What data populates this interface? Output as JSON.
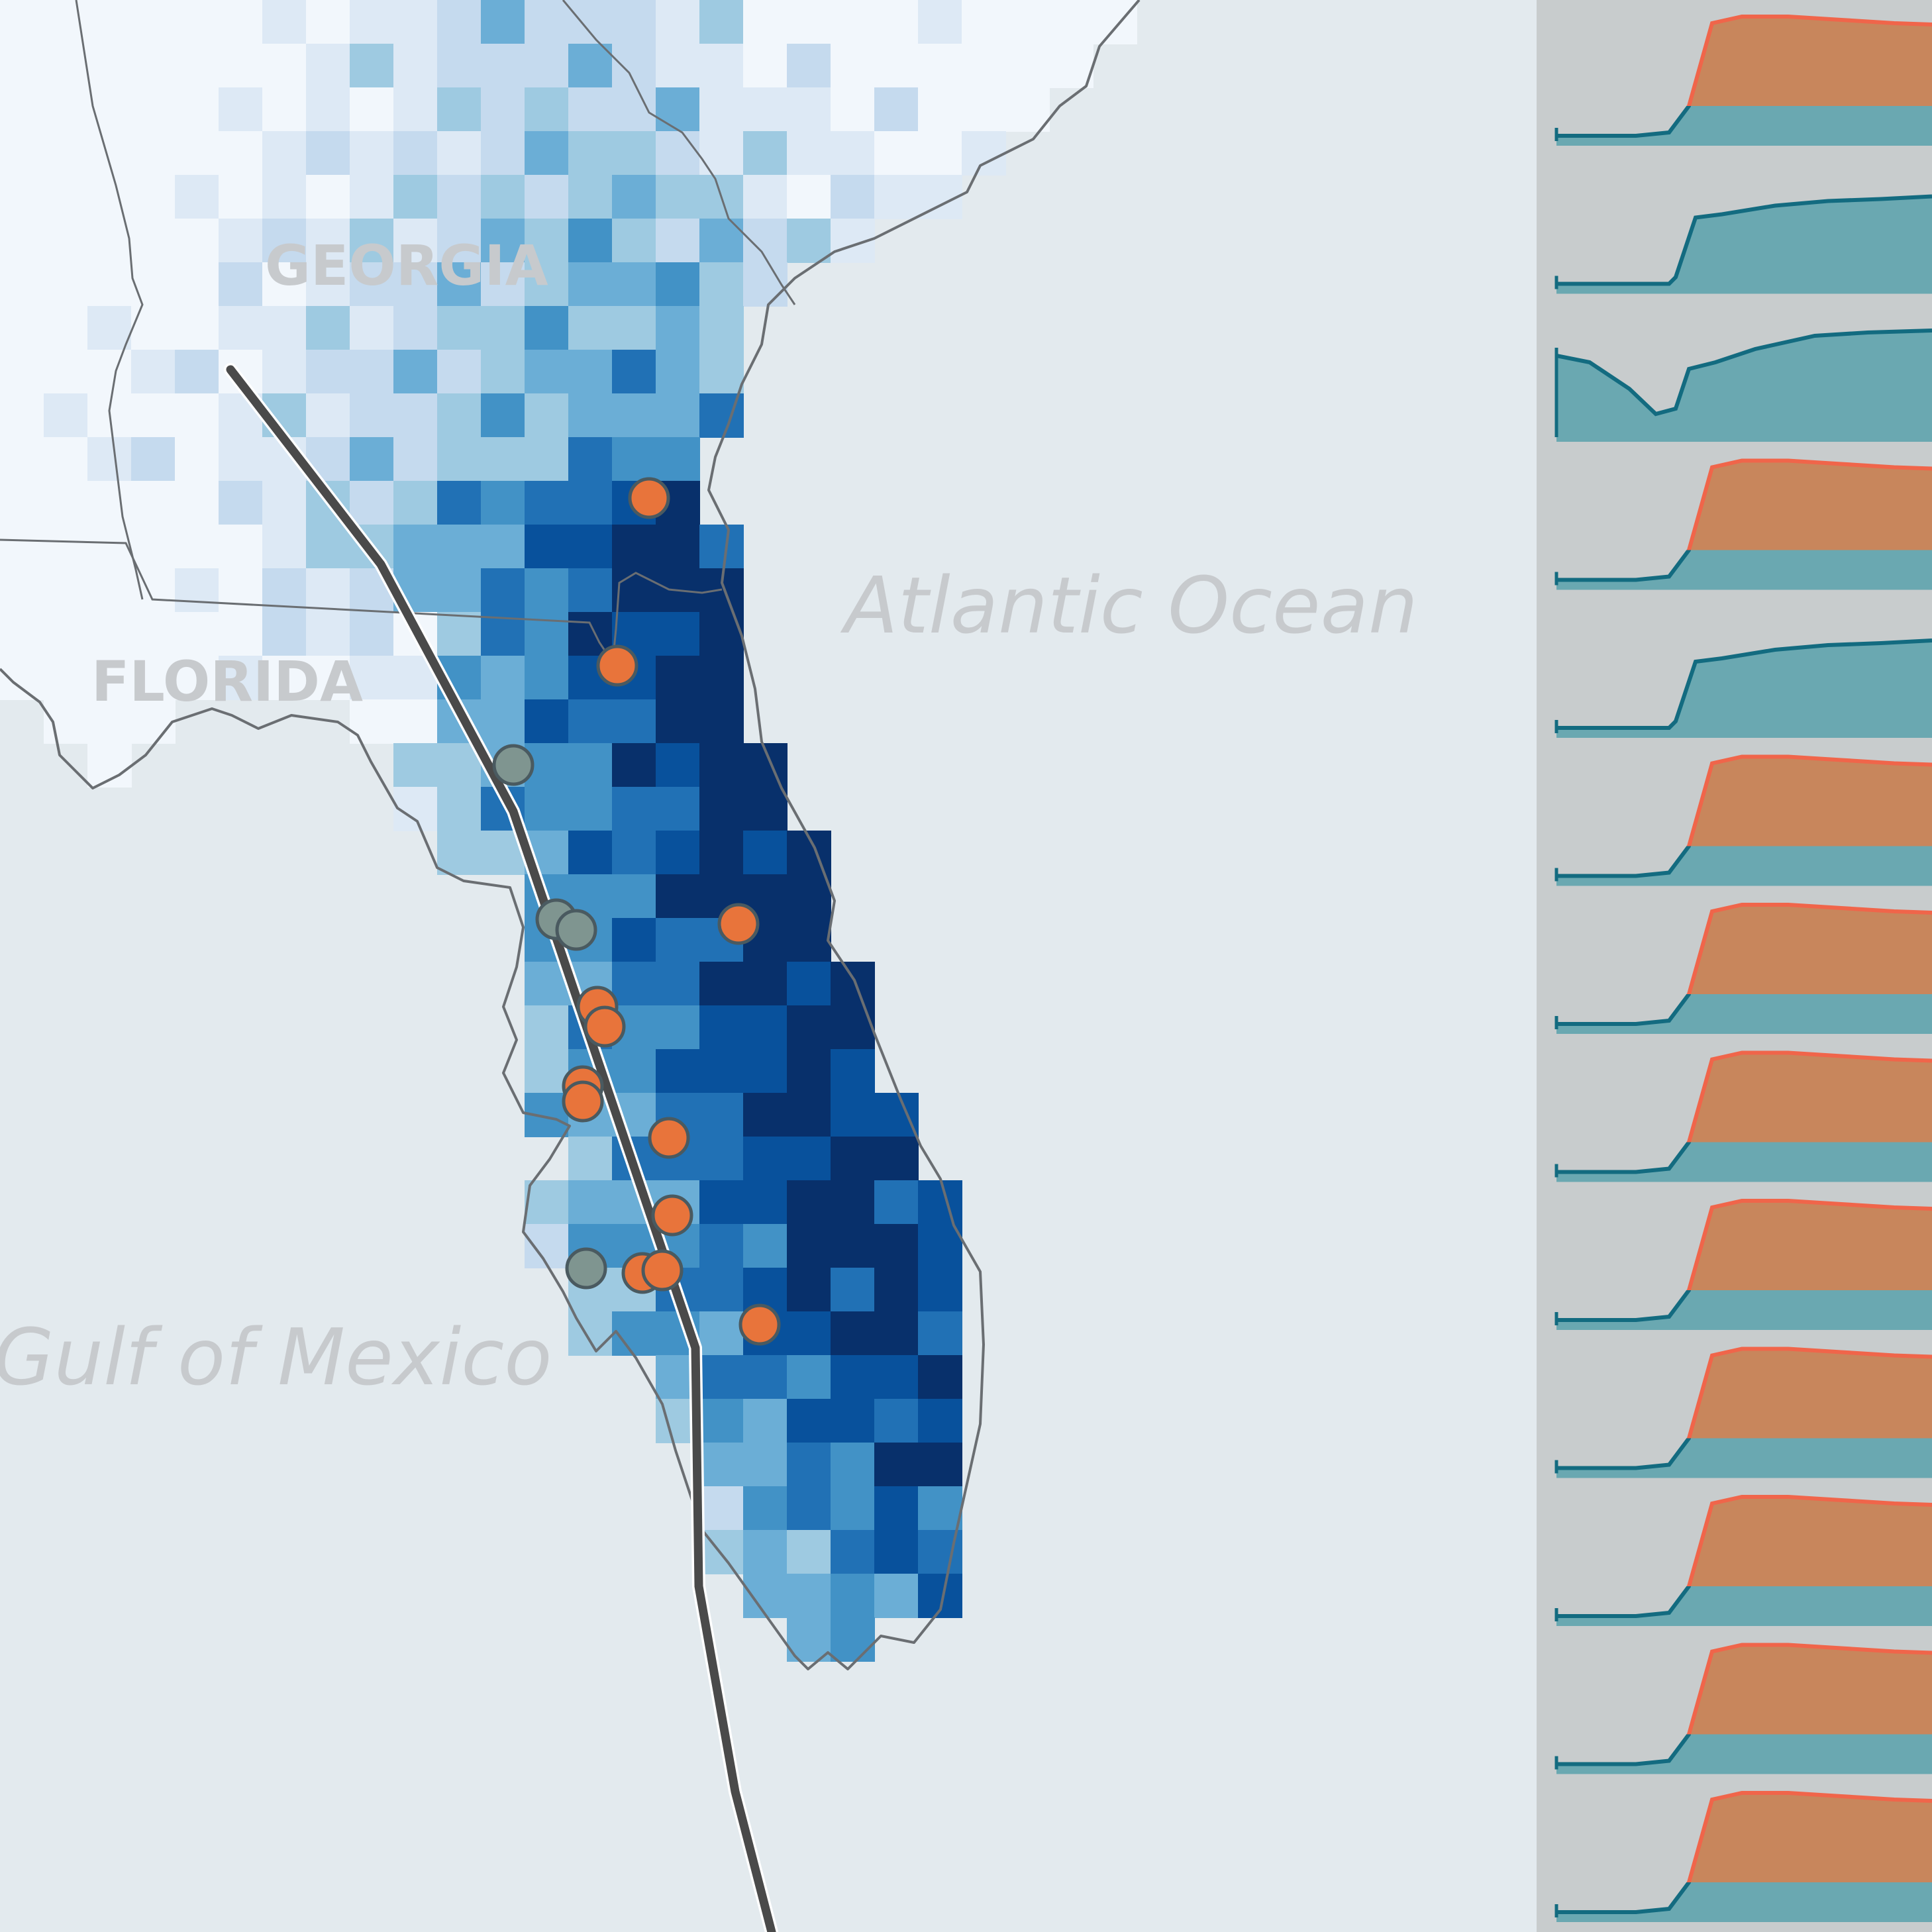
{
  "labels": {
    "georgia": "GEORGIA",
    "florida": "FLORIDA",
    "atlantic": "Atlantic Ocean",
    "gulf": "Gulf of Mexico"
  },
  "colors": {
    "ocean": "#e3eaee",
    "panel": "#c8cccd",
    "teal_fill": "#6aa8b1",
    "teal_line": "#136b80",
    "orange_fill": "#c8865c",
    "orange_line": "#f0654a",
    "marker_orange": "#e8743b",
    "marker_gray": "#7f9590",
    "track": "#4a4a4a",
    "blues": [
      "#f2f7fc",
      "#dde9f5",
      "#c5daee",
      "#9ecae1",
      "#6baed6",
      "#4292c6",
      "#2171b5",
      "#08519c",
      "#08306b"
    ]
  },
  "markers": {
    "orange_count": 13,
    "gray_count": 4
  },
  "sparklines": [
    {
      "kind": "surge"
    },
    {
      "kind": "rise"
    },
    {
      "kind": "dip"
    },
    {
      "kind": "surge"
    },
    {
      "kind": "rise"
    },
    {
      "kind": "surge"
    },
    {
      "kind": "surge"
    },
    {
      "kind": "surge"
    },
    {
      "kind": "surge"
    },
    {
      "kind": "surge"
    },
    {
      "kind": "surge"
    },
    {
      "kind": "surge"
    },
    {
      "kind": "surge"
    }
  ]
}
